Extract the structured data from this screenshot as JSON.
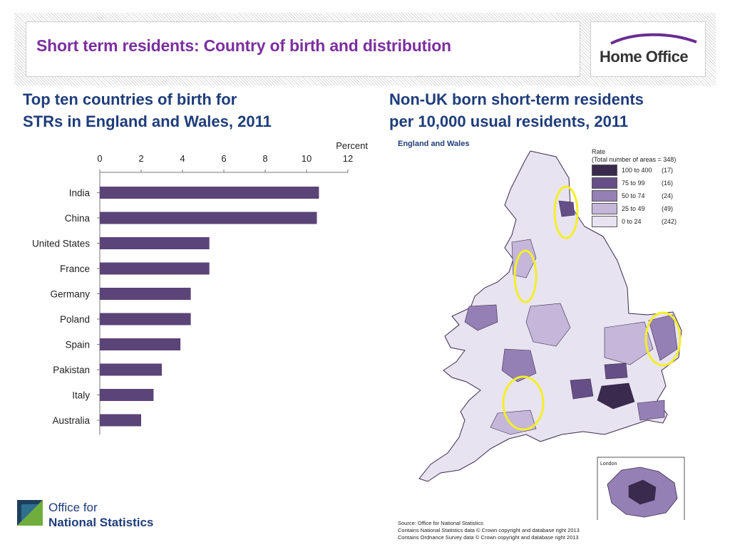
{
  "header": {
    "title": "Short term residents: Country of birth and distribution",
    "logo_text": "Home Office"
  },
  "left_title": {
    "line1": "Top ten countries of birth for",
    "line2": "STRs in England and Wales, 2011"
  },
  "right_title": {
    "line1": "Non-UK born short-term residents",
    "line2": "per 10,000 usual residents, 2011"
  },
  "chart_data": {
    "type": "bar",
    "orientation": "horizontal",
    "categories": [
      "India",
      "China",
      "United States",
      "France",
      "Germany",
      "Poland",
      "Spain",
      "Pakistan",
      "Italy",
      "Australia"
    ],
    "values": [
      10.6,
      10.5,
      5.3,
      5.3,
      4.4,
      4.4,
      3.9,
      3.0,
      2.6,
      2.0
    ],
    "xlabel": "Percent",
    "xlim": [
      0,
      12
    ],
    "xticks": [
      0,
      2,
      4,
      6,
      8,
      10,
      12
    ],
    "color": "#5b4478",
    "axis_position": "top",
    "grid": false
  },
  "map": {
    "label": "England and Wales",
    "inset_label": "London",
    "legend": {
      "title_line1": "Rate",
      "title_line2": "(Total number of areas = 348)",
      "rows": [
        {
          "range": "100 to 400",
          "count": "(17)",
          "color": "#3a2a4d"
        },
        {
          "range": "75 to 99",
          "count": "(16)",
          "color": "#654f86"
        },
        {
          "range": "50 to 74",
          "count": "(24)",
          "color": "#9580b5"
        },
        {
          "range": "25 to 49",
          "count": "(49)",
          "color": "#c4b7d9"
        },
        {
          "range": "0 to 24",
          "count": "(242)",
          "color": "#e8e3f0"
        }
      ]
    },
    "highlight_color": "#f4ee2a",
    "source_lines": [
      "Source: Office for National Statistics",
      "Contains National Statistics data © Crown copyright and database right 2013",
      "Contains Ordnance Survey data © Crown copyright and database right 2013"
    ]
  },
  "footer": {
    "ons_line1": "Office for",
    "ons_line2": "National Statistics"
  }
}
